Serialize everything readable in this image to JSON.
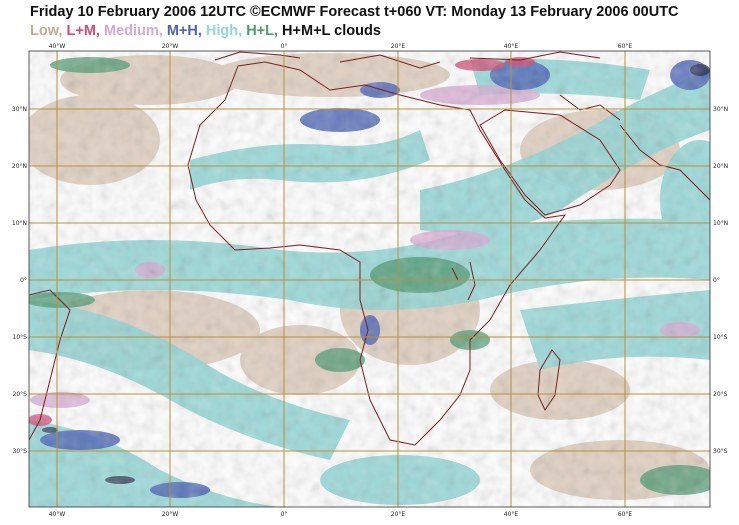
{
  "header": {
    "title": "Friday 10 February 2006 12UTC ©ECMWF Forecast t+060 VT: Monday 13 February 2006 00UTC"
  },
  "legend": {
    "items": [
      {
        "label": "Low, ",
        "color": "#c8ab90"
      },
      {
        "label": "L+M, ",
        "color": "#d34a73"
      },
      {
        "label": "Medium, ",
        "color": "#d8a9d3"
      },
      {
        "label": "M+H, ",
        "color": "#4a63b5"
      },
      {
        "label": "High, ",
        "color": "#92d6d6"
      },
      {
        "label": "H+L, ",
        "color": "#4f9a72"
      },
      {
        "label": "H+M+L clouds",
        "color": "#111111"
      }
    ]
  },
  "map": {
    "lon_labels": [
      "40°W",
      "20°W",
      "0°",
      "20°E",
      "40°E",
      "60°E"
    ],
    "lat_labels": [
      "30°N",
      "20°N",
      "10°N",
      "0°",
      "10°S",
      "20°S",
      "30°S"
    ],
    "grid_color": "#b8913a",
    "coast_color": "#7a1f1f"
  }
}
